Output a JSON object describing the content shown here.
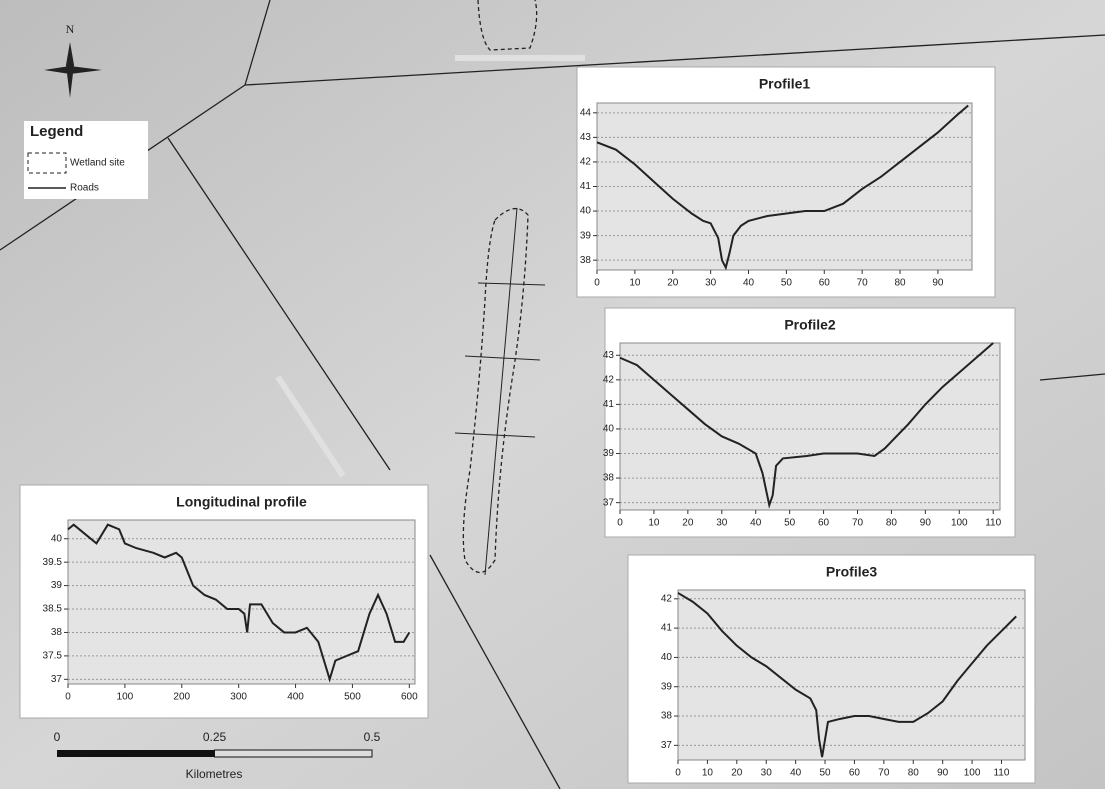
{
  "map": {
    "north": "N",
    "legend": {
      "title": "Legend",
      "items": [
        "Wetland site",
        "Roads"
      ]
    },
    "scale_bar": {
      "ticks": [
        0,
        0.25,
        0.5
      ],
      "unit": "Kilometres"
    }
  },
  "chart_data": [
    {
      "type": "line",
      "title": "Profile1",
      "color": "#222222",
      "grid": true,
      "x": [
        0,
        5,
        10,
        15,
        20,
        25,
        28,
        30,
        32,
        33,
        34,
        35,
        36,
        38,
        40,
        45,
        50,
        55,
        60,
        65,
        70,
        75,
        80,
        85,
        90,
        95,
        98
      ],
      "values": [
        42.8,
        42.5,
        41.9,
        41.2,
        40.5,
        39.9,
        39.6,
        39.5,
        38.9,
        38.0,
        37.7,
        38.3,
        39.0,
        39.4,
        39.6,
        39.8,
        39.9,
        40.0,
        40.0,
        40.3,
        40.9,
        41.4,
        42.0,
        42.6,
        43.2,
        43.9,
        44.3
      ],
      "xlim": [
        0,
        99
      ],
      "xticks": [
        0,
        10,
        20,
        30,
        40,
        50,
        60,
        70,
        80,
        90
      ],
      "ylim": [
        37.6,
        44.4
      ],
      "yticks": [
        38,
        39,
        40,
        41,
        42,
        43,
        44
      ]
    },
    {
      "type": "line",
      "title": "Profile2",
      "color": "#222222",
      "grid": true,
      "x": [
        0,
        5,
        10,
        15,
        20,
        25,
        30,
        35,
        40,
        42,
        44,
        45,
        46,
        48,
        55,
        60,
        70,
        75,
        78,
        85,
        90,
        95,
        100,
        105,
        110
      ],
      "values": [
        42.9,
        42.6,
        42.0,
        41.4,
        40.8,
        40.2,
        39.7,
        39.4,
        39.0,
        38.2,
        36.9,
        37.3,
        38.5,
        38.8,
        38.9,
        39.0,
        39.0,
        38.9,
        39.2,
        40.2,
        41.0,
        41.7,
        42.3,
        42.9,
        43.5
      ],
      "xlim": [
        0,
        112
      ],
      "xticks": [
        0,
        10,
        20,
        30,
        40,
        50,
        60,
        70,
        80,
        90,
        100,
        110
      ],
      "ylim": [
        36.7,
        43.5
      ],
      "yticks": [
        37,
        38,
        39,
        40,
        41,
        42,
        43
      ]
    },
    {
      "type": "line",
      "title": "Profile3",
      "color": "#222222",
      "grid": true,
      "x": [
        0,
        5,
        10,
        15,
        20,
        25,
        30,
        35,
        40,
        45,
        47,
        48,
        49,
        50,
        51,
        55,
        60,
        65,
        70,
        75,
        80,
        85,
        90,
        95,
        100,
        105,
        110,
        115
      ],
      "values": [
        42.2,
        41.9,
        41.5,
        40.9,
        40.4,
        40.0,
        39.7,
        39.3,
        38.9,
        38.6,
        38.2,
        37.2,
        36.6,
        37.2,
        37.8,
        37.9,
        38.0,
        38.0,
        37.9,
        37.8,
        37.8,
        38.1,
        38.5,
        39.2,
        39.8,
        40.4,
        40.9,
        41.4
      ],
      "xlim": [
        0,
        118
      ],
      "xticks": [
        0,
        10,
        20,
        30,
        40,
        50,
        60,
        70,
        80,
        90,
        100,
        110
      ],
      "ylim": [
        36.5,
        42.3
      ],
      "yticks": [
        37,
        38,
        39,
        40,
        41,
        42
      ]
    },
    {
      "type": "line",
      "title": "Longitudinal profile",
      "color": "#222222",
      "grid": true,
      "x": [
        0,
        10,
        30,
        50,
        70,
        90,
        100,
        120,
        150,
        170,
        190,
        200,
        220,
        240,
        260,
        280,
        300,
        310,
        315,
        320,
        340,
        360,
        380,
        400,
        420,
        440,
        455,
        460,
        470,
        490,
        510,
        530,
        545,
        560,
        575,
        590,
        600
      ],
      "values": [
        40.2,
        40.3,
        40.1,
        39.9,
        40.3,
        40.2,
        39.9,
        39.8,
        39.7,
        39.6,
        39.7,
        39.6,
        39.0,
        38.8,
        38.7,
        38.5,
        38.5,
        38.4,
        38.0,
        38.6,
        38.6,
        38.2,
        38.0,
        38.0,
        38.1,
        37.8,
        37.2,
        37.0,
        37.4,
        37.5,
        37.6,
        38.4,
        38.8,
        38.4,
        37.8,
        37.8,
        38.0
      ],
      "xlim": [
        0,
        610
      ],
      "xticks": [
        0,
        100,
        200,
        300,
        400,
        500,
        600
      ],
      "ylim": [
        36.9,
        40.4
      ],
      "yticks": [
        37,
        37.5,
        38,
        38.5,
        39,
        39.5,
        40
      ]
    }
  ]
}
